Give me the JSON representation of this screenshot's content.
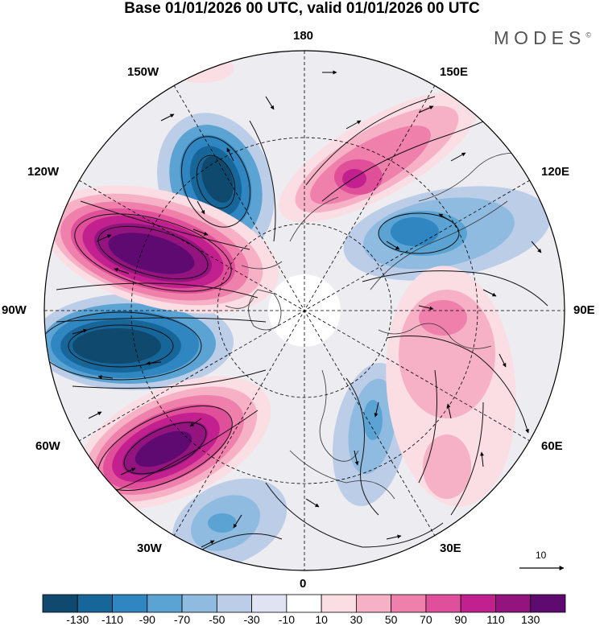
{
  "title": "Base 01/01/2026 00 UTC, valid 01/01/2026 00 UTC",
  "brand": "MODES",
  "brand_mark": "©",
  "longitude_labels": {
    "top": "180",
    "top_right": "150E",
    "right_upper": "120E",
    "right": "90E",
    "right_lower": "60E",
    "bottom_right": "30E",
    "bottom": "0",
    "bottom_left": "30W",
    "left_lower": "60W",
    "left": "90W",
    "left_upper": "120W",
    "top_left": "150W"
  },
  "reference_vector": "10",
  "colorbar": {
    "colors": [
      "#0f4a6e",
      "#17669a",
      "#2f86c0",
      "#5aa3d3",
      "#8fbbe0",
      "#bccde8",
      "#e0e4f2",
      "#ffffff",
      "#fbdde4",
      "#f6b1c6",
      "#ef7fab",
      "#e04f9a",
      "#c2208e",
      "#93137f",
      "#5e0a70"
    ],
    "labels": [
      "-130",
      "-110",
      "-90",
      "-70",
      "-50",
      "-30",
      "-10",
      "10",
      "30",
      "50",
      "70",
      "90",
      "110",
      "130"
    ]
  }
}
